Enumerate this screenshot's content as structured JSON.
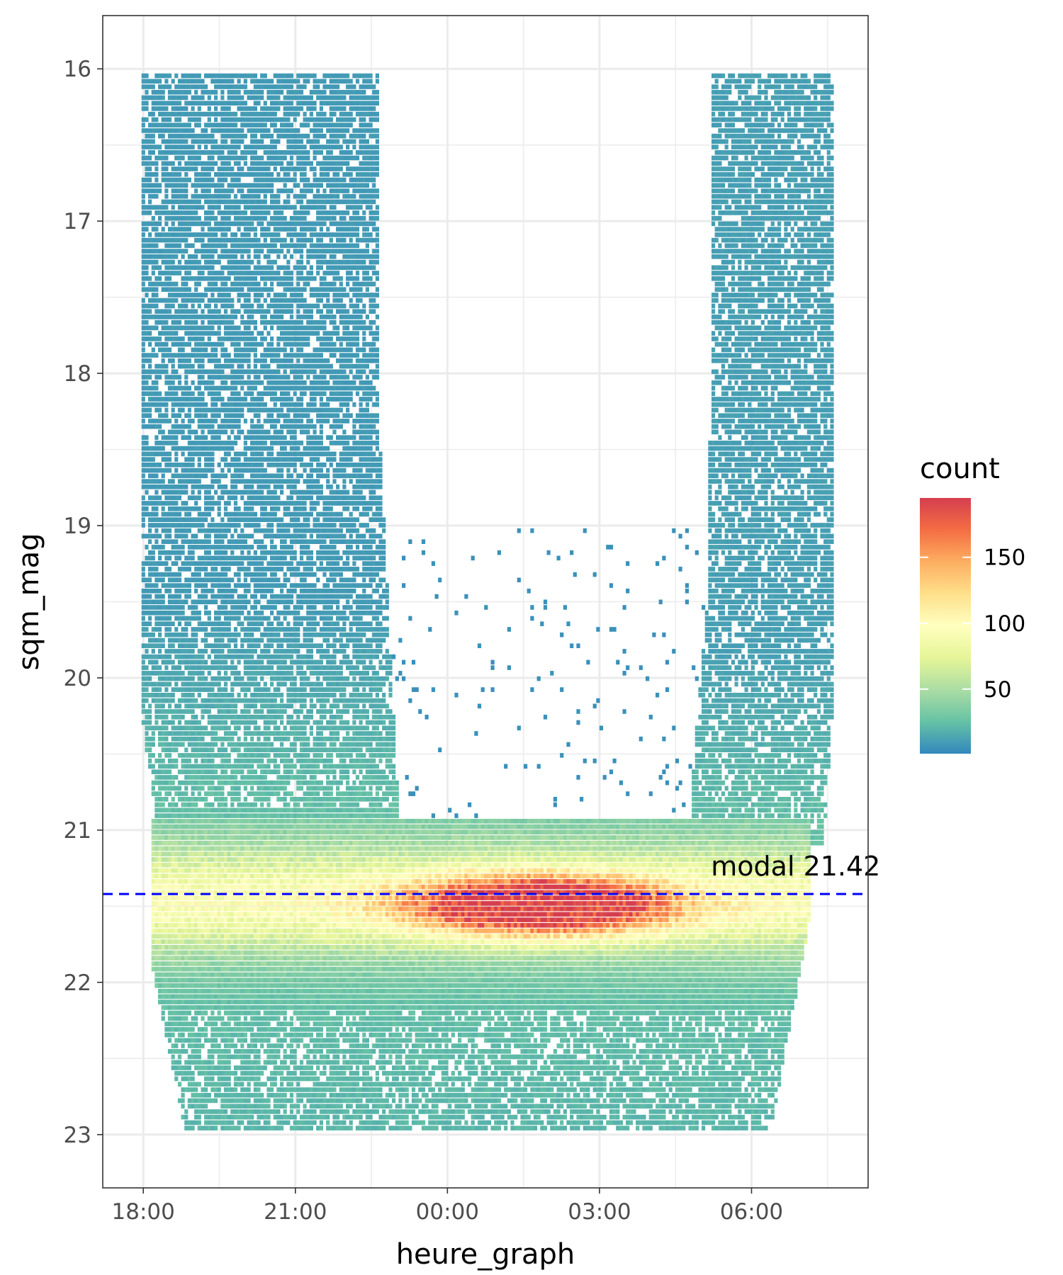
{
  "chart_data": {
    "type": "heatmap",
    "xlabel": "heure_graph",
    "ylabel": "sqm_mag",
    "x_ticks": [
      "18:00",
      "21:00",
      "00:00",
      "03:00",
      "06:00"
    ],
    "x_tick_hours": [
      18,
      21,
      24,
      27,
      30
    ],
    "xlim_hours": [
      17.2,
      32.3
    ],
    "y_ticks": [
      "16",
      "17",
      "18",
      "19",
      "20",
      "21",
      "22",
      "23"
    ],
    "y_tick_values": [
      16,
      17,
      18,
      19,
      20,
      21,
      22,
      23
    ],
    "ylim": [
      15.65,
      23.35
    ],
    "y_reversed": true,
    "grid": true,
    "legend": {
      "title": "count",
      "position": "right",
      "ticks": [
        "150",
        "100",
        "50"
      ],
      "tick_values": [
        150,
        100,
        50
      ],
      "range": [
        1,
        195
      ],
      "colors": [
        "#3288bd",
        "#66c2a5",
        "#abdda4",
        "#e6f598",
        "#ffffbf",
        "#fee08b",
        "#fdae61",
        "#f46d43",
        "#d53e4f"
      ]
    },
    "annotation": {
      "text": "modal 21.42",
      "y": 21.42,
      "x_hour": 29.2,
      "line_color": "#0000ff",
      "line_style": "dashed"
    },
    "density_shape": {
      "description_points": "U-shaped density of sky brightness vs. hour",
      "left_band_hours": [
        17.9,
        22.6
      ],
      "right_band_hours": [
        28.9,
        31.6
      ],
      "bottom_band_y": [
        21.0,
        22.95
      ],
      "hotspot_center": {
        "x_hour": 25.8,
        "y": 21.48
      },
      "max_count": 195
    }
  }
}
